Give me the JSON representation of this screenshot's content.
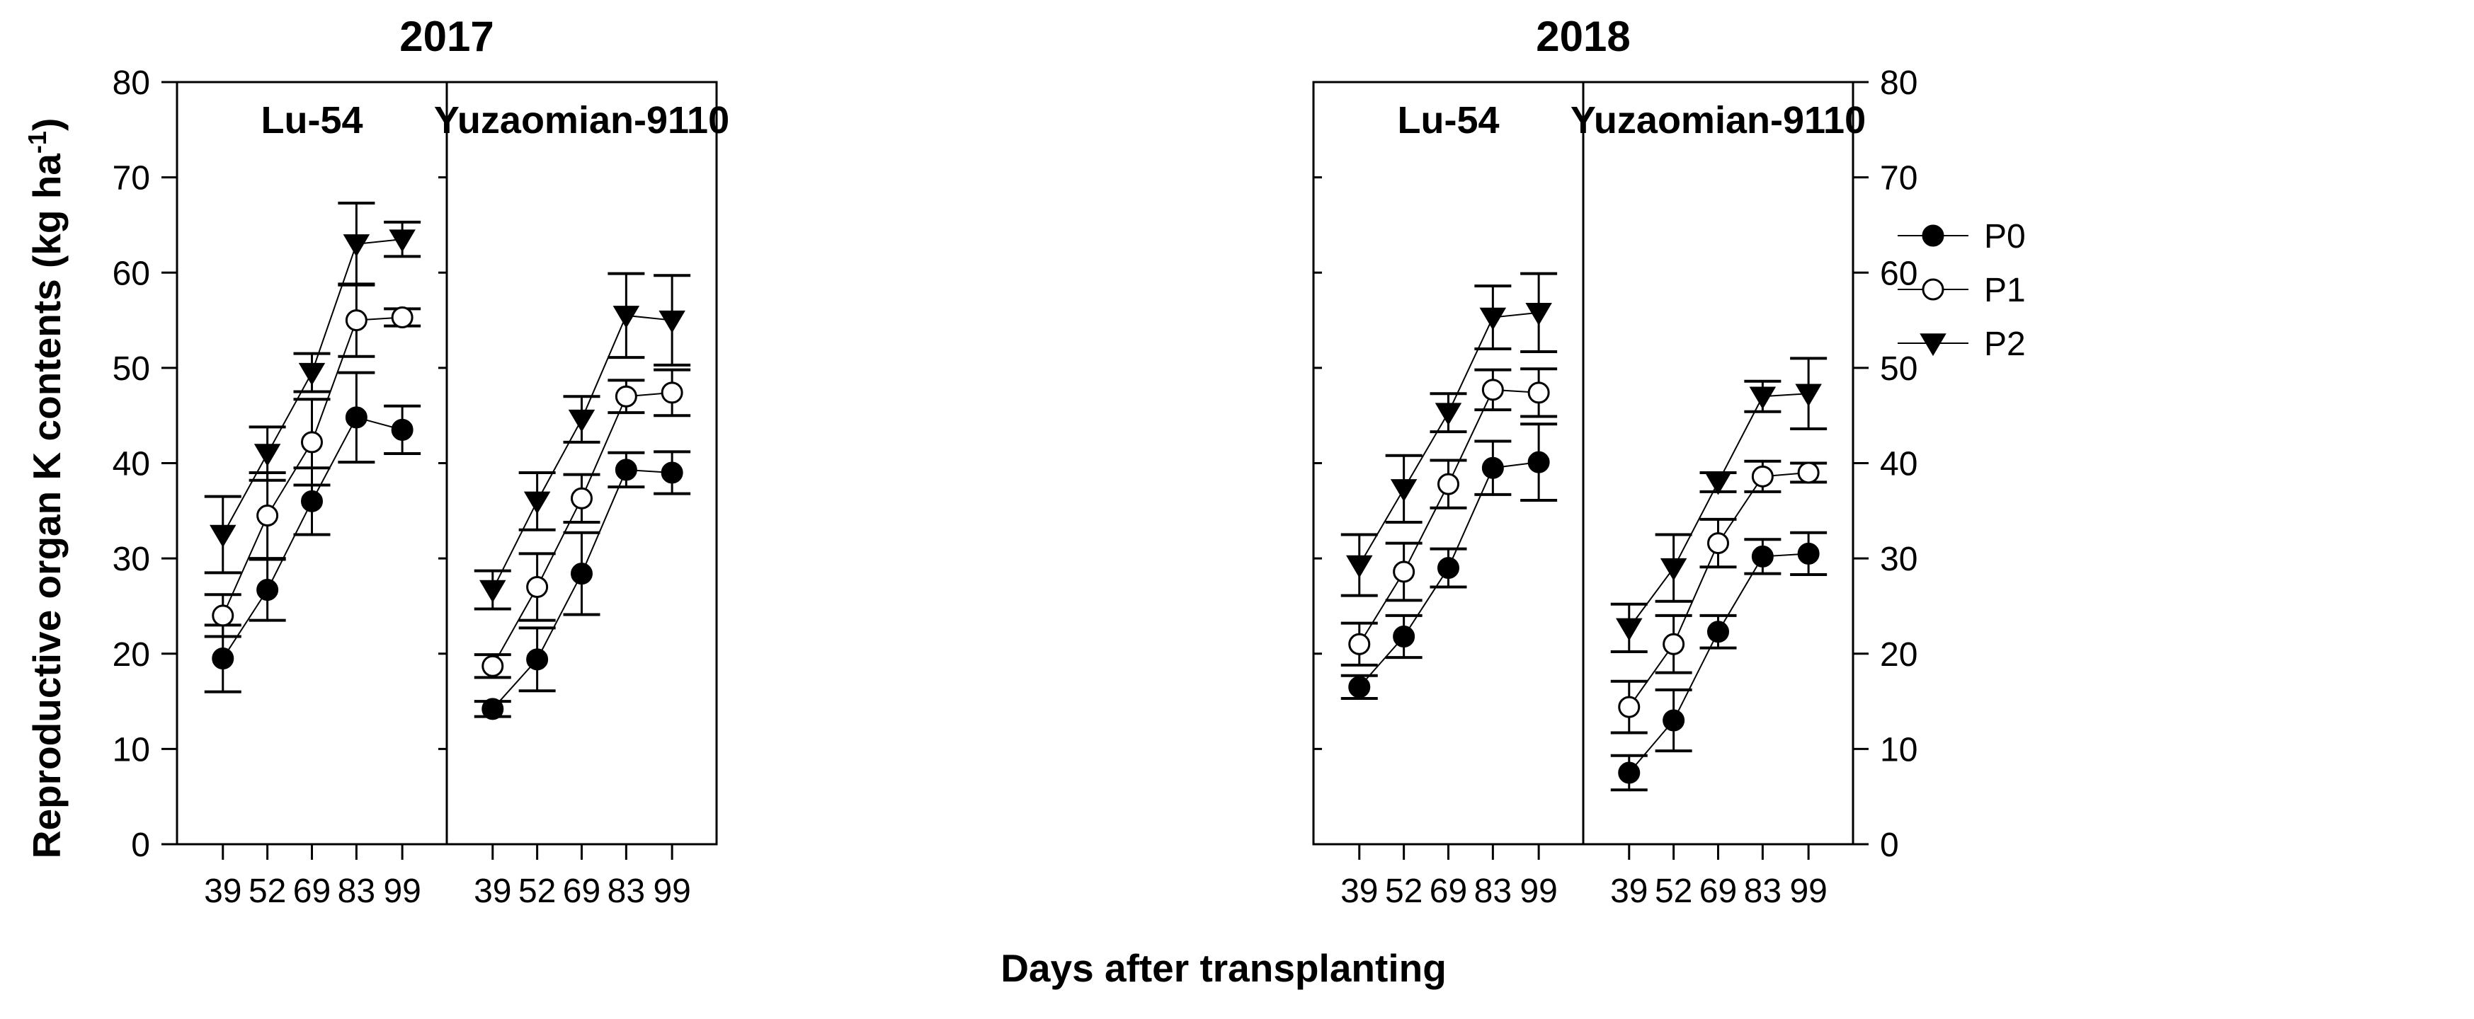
{
  "chart_data": {
    "type": "line",
    "ylabel": "Reproductive organ K contents (kg ha",
    "ylabel_superscript": "-1",
    "ylabel_close": ")",
    "xlabel": "Days after transplanting",
    "ylim": [
      0,
      80
    ],
    "yticks": [
      0,
      10,
      20,
      30,
      40,
      50,
      60,
      70,
      80
    ],
    "categories": [
      "39",
      "52",
      "69",
      "83",
      "99"
    ],
    "legend": {
      "location": "upper-left of 2018 Yuzaomian-9110 panel",
      "entries": [
        {
          "name": "P0",
          "marker": "filled-circle"
        },
        {
          "name": "P1",
          "marker": "open-circle"
        },
        {
          "name": "P2",
          "marker": "filled-triangle-down"
        }
      ]
    },
    "groups": [
      {
        "year": "2017",
        "panels": [
          {
            "title": "Lu-54",
            "series": [
              {
                "name": "P0",
                "values": [
                  19.5,
                  26.7,
                  36.0,
                  44.8,
                  43.5
                ],
                "errors": [
                  3.5,
                  3.2,
                  3.5,
                  4.7,
                  2.5
                ]
              },
              {
                "name": "P1",
                "values": [
                  24.0,
                  34.5,
                  42.2,
                  55.0,
                  55.3
                ],
                "errors": [
                  2.2,
                  4.5,
                  4.5,
                  3.8,
                  0.9
                ]
              },
              {
                "name": "P2",
                "values": [
                  32.5,
                  41.0,
                  49.5,
                  63.0,
                  63.5
                ],
                "errors": [
                  4.0,
                  2.8,
                  2.0,
                  4.3,
                  1.8
                ]
              }
            ]
          },
          {
            "title": "Yuzaomian-9110",
            "series": [
              {
                "name": "P0",
                "values": [
                  14.2,
                  19.4,
                  28.4,
                  39.3,
                  39.0
                ],
                "errors": [
                  0.8,
                  3.3,
                  4.3,
                  1.8,
                  2.2
                ]
              },
              {
                "name": "P1",
                "values": [
                  18.7,
                  27.0,
                  36.3,
                  47.0,
                  47.4
                ],
                "errors": [
                  1.2,
                  3.5,
                  2.5,
                  1.7,
                  2.4
                ]
              },
              {
                "name": "P2",
                "values": [
                  26.7,
                  36.0,
                  44.6,
                  55.5,
                  55.0
                ],
                "errors": [
                  2.0,
                  3.0,
                  2.4,
                  4.4,
                  4.7
                ]
              }
            ]
          }
        ]
      },
      {
        "year": "2018",
        "panels": [
          {
            "title": "Lu-54",
            "series": [
              {
                "name": "P0",
                "values": [
                  16.5,
                  21.8,
                  29.0,
                  39.5,
                  40.1
                ],
                "errors": [
                  1.2,
                  2.2,
                  2.0,
                  2.8,
                  4.0
                ]
              },
              {
                "name": "P1",
                "values": [
                  21.0,
                  28.6,
                  37.8,
                  47.7,
                  47.4
                ],
                "errors": [
                  2.2,
                  3.0,
                  2.5,
                  2.1,
                  2.5
                ]
              },
              {
                "name": "P2",
                "values": [
                  29.3,
                  37.3,
                  45.3,
                  55.3,
                  55.8
                ],
                "errors": [
                  3.2,
                  3.5,
                  2.0,
                  3.3,
                  4.1
                ]
              }
            ]
          },
          {
            "title": "Yuzaomian-9110",
            "series": [
              {
                "name": "P0",
                "values": [
                  7.5,
                  13.0,
                  22.3,
                  30.2,
                  30.5
                ],
                "errors": [
                  1.8,
                  3.2,
                  1.7,
                  1.8,
                  2.2
                ]
              },
              {
                "name": "P1",
                "values": [
                  14.4,
                  21.0,
                  31.6,
                  38.6,
                  39.0
                ],
                "errors": [
                  2.7,
                  3.0,
                  2.5,
                  1.6,
                  1.0
                ]
              },
              {
                "name": "P2",
                "values": [
                  22.7,
                  29.0,
                  38.0,
                  47.0,
                  47.3
                ],
                "errors": [
                  2.5,
                  3.5,
                  1.0,
                  1.6,
                  3.7
                ]
              }
            ]
          }
        ]
      }
    ]
  }
}
